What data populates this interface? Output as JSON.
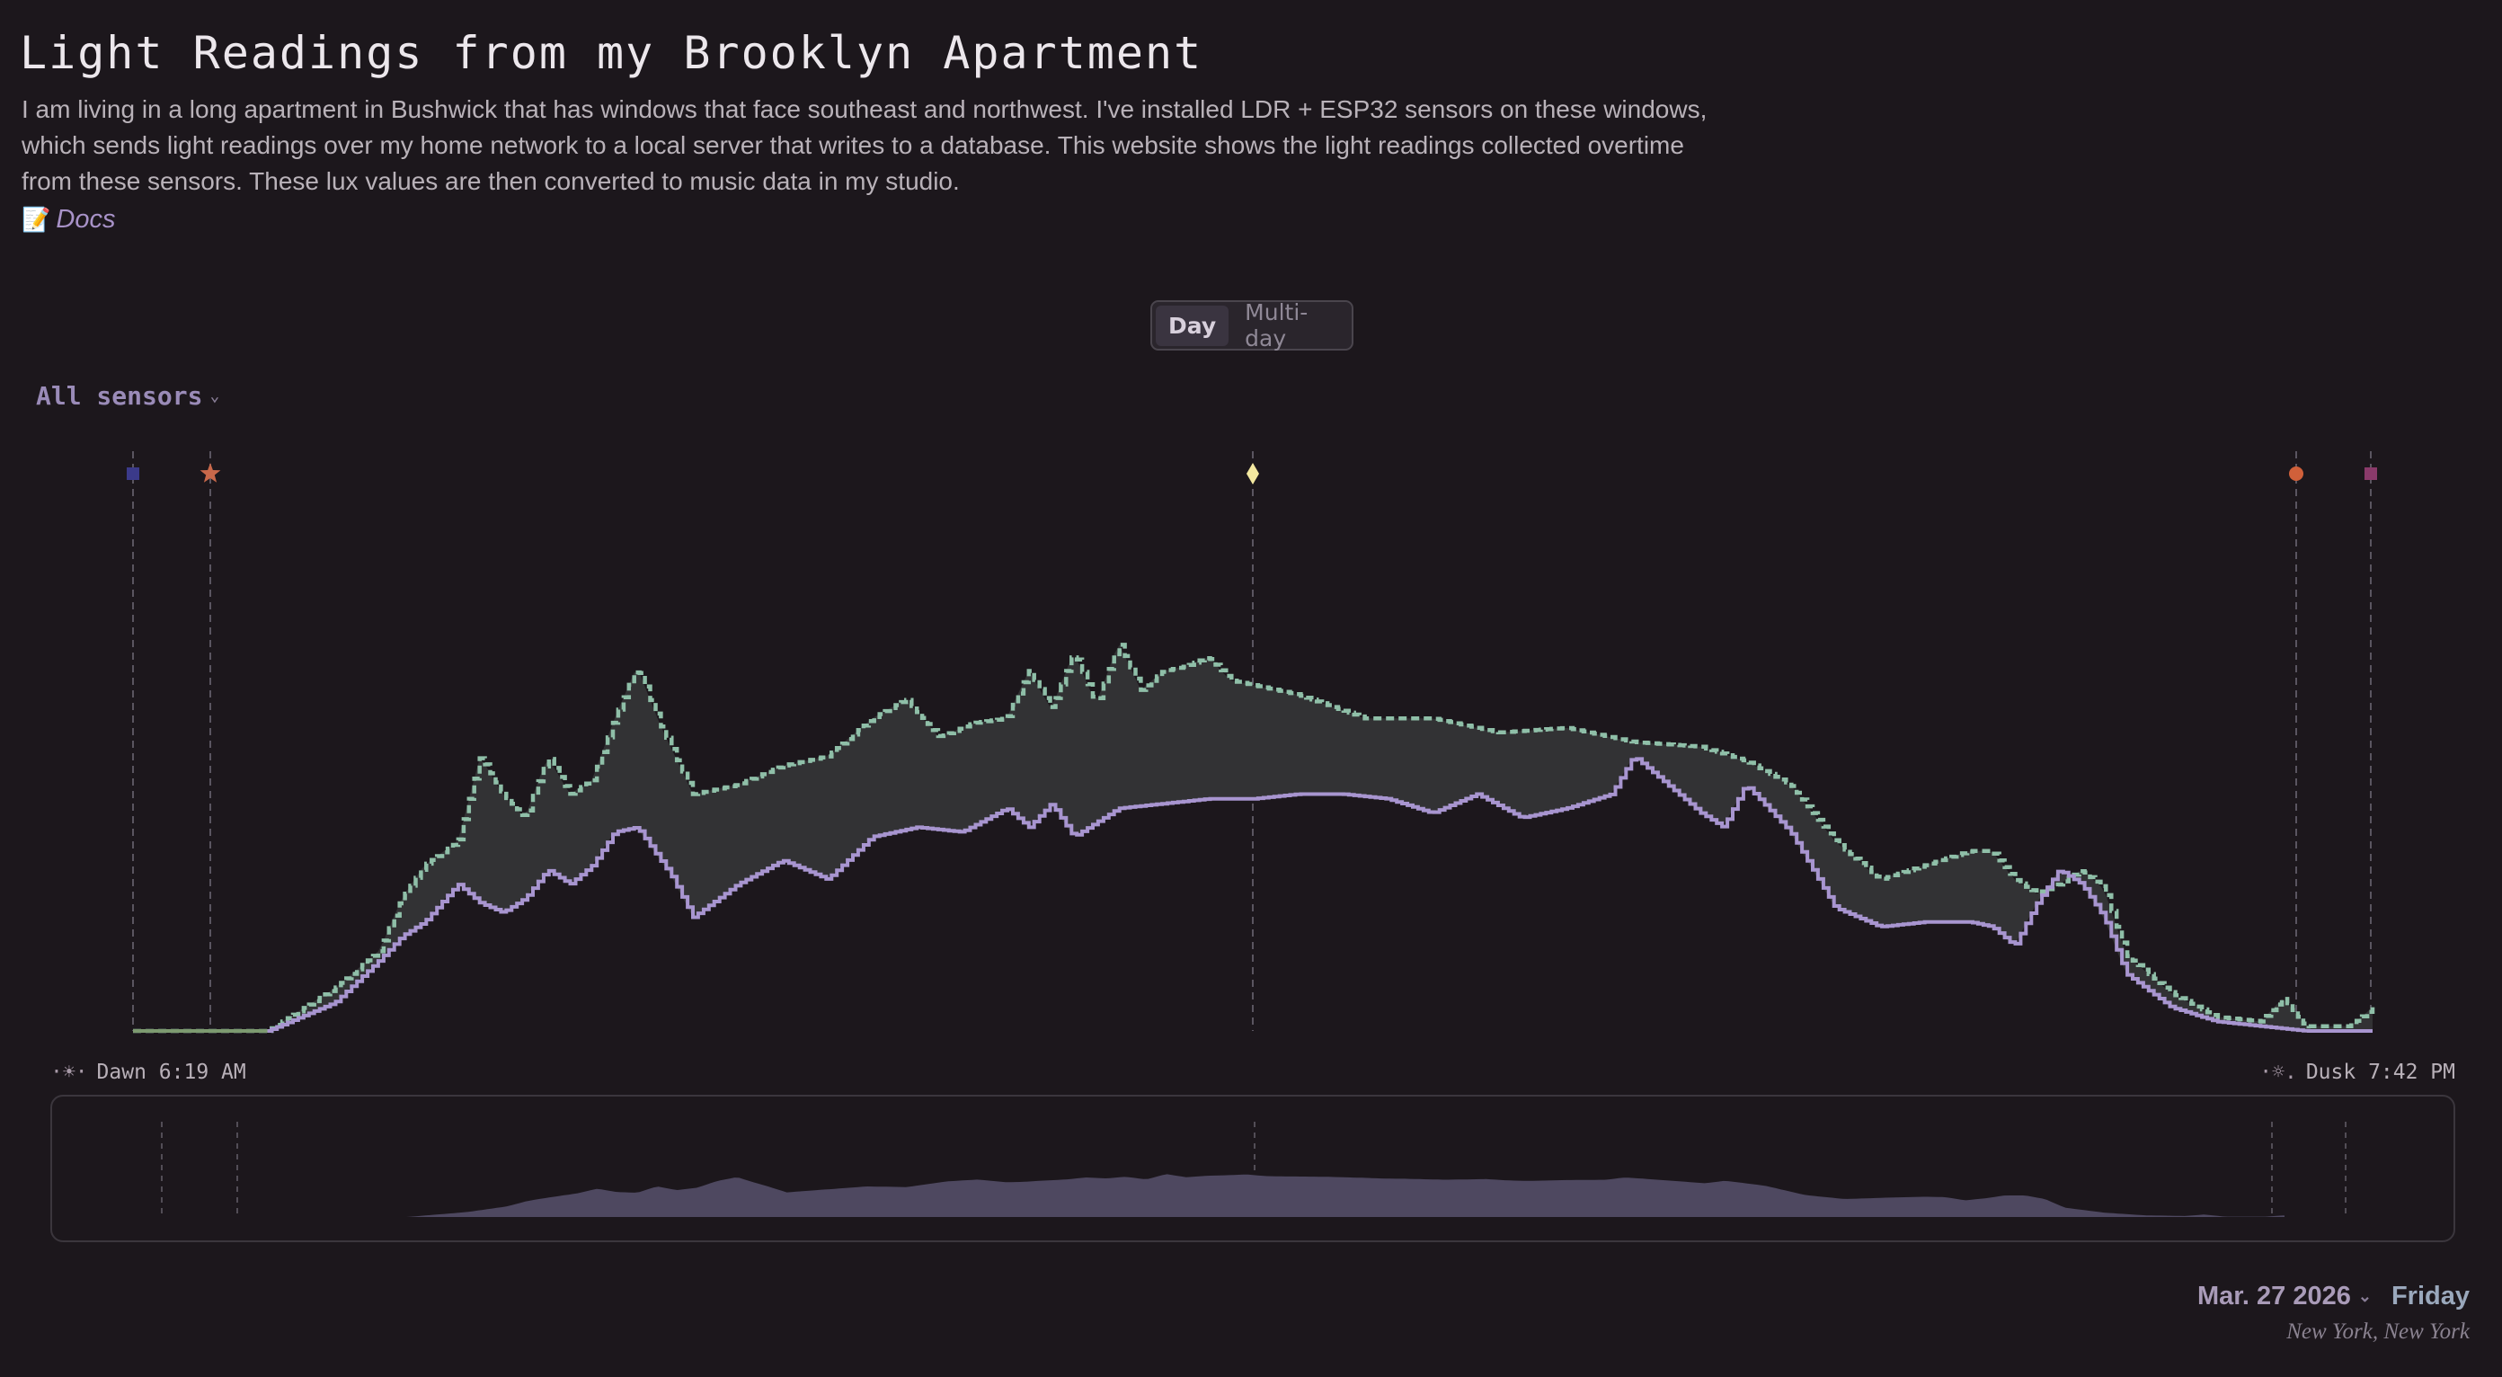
{
  "header": {
    "title": "Light Readings from my Brooklyn Apartment",
    "intro": "I am living in a long apartment in Bushwick that has windows that face southeast and northwest. I've installed LDR + ESP32 sensors on these windows, which sends light readings over my home network to a local server that writes to a database. This website shows the light readings collected overtime from these sensors. These lux values are then converted to music data in my studio.",
    "docs_icon": "memo-icon",
    "docs_label": "Docs"
  },
  "view_toggle": {
    "options": [
      "Day",
      "Multi-day"
    ],
    "selected": "Day"
  },
  "sensor_select": {
    "value": "All sensors"
  },
  "sun": {
    "dawn_label": "Dawn 6:19 AM",
    "dusk_label": "Dusk 7:42 PM"
  },
  "date": {
    "value": "Mar. 27 2026",
    "weekday": "Friday",
    "location": "New York, New York"
  },
  "colors": {
    "background": "#1c171c",
    "sensor_southeast": "#8fbfa8",
    "sensor_northwest": "#a895d0",
    "band_fill": "#323234",
    "overview_fill": "#4e4860",
    "marker_dawn": "#3b3a8a",
    "marker_sunrise": "#c9684a",
    "marker_noon": "#f3e8a0",
    "marker_sunset": "#d0603a",
    "marker_dusk": "#8a3a6a"
  },
  "chart_data": {
    "type": "line",
    "x_unit": "time of day",
    "x_range": [
      "6:19 AM",
      "7:42 PM"
    ],
    "ylabel": "",
    "markers": [
      {
        "kind": "dawn",
        "time": "6:19 AM",
        "shape": "square"
      },
      {
        "kind": "sunrise",
        "shape": "star"
      },
      {
        "kind": "solar-noon",
        "shape": "diamond"
      },
      {
        "kind": "sunset",
        "shape": "circle"
      },
      {
        "kind": "dusk",
        "time": "7:42 PM",
        "shape": "square"
      }
    ],
    "series": [
      {
        "style": "dashed",
        "color": "#8fbfa8",
        "points": [
          [
            0,
            0.0
          ],
          [
            0.06,
            0.0
          ],
          [
            0.07,
            0.03
          ],
          [
            0.09,
            0.09
          ],
          [
            0.11,
            0.17
          ],
          [
            0.12,
            0.28
          ],
          [
            0.13,
            0.35
          ],
          [
            0.145,
            0.4
          ],
          [
            0.155,
            0.58
          ],
          [
            0.165,
            0.5
          ],
          [
            0.175,
            0.45
          ],
          [
            0.185,
            0.58
          ],
          [
            0.195,
            0.5
          ],
          [
            0.205,
            0.53
          ],
          [
            0.215,
            0.66
          ],
          [
            0.225,
            0.77
          ],
          [
            0.235,
            0.65
          ],
          [
            0.25,
            0.5
          ],
          [
            0.27,
            0.52
          ],
          [
            0.29,
            0.56
          ],
          [
            0.31,
            0.58
          ],
          [
            0.33,
            0.66
          ],
          [
            0.345,
            0.7
          ],
          [
            0.36,
            0.62
          ],
          [
            0.375,
            0.65
          ],
          [
            0.39,
            0.66
          ],
          [
            0.4,
            0.76
          ],
          [
            0.41,
            0.68
          ],
          [
            0.42,
            0.8
          ],
          [
            0.43,
            0.69
          ],
          [
            0.44,
            0.82
          ],
          [
            0.45,
            0.72
          ],
          [
            0.46,
            0.76
          ],
          [
            0.47,
            0.77
          ],
          [
            0.48,
            0.79
          ],
          [
            0.49,
            0.74
          ],
          [
            0.5,
            0.73
          ],
          [
            0.52,
            0.71
          ],
          [
            0.55,
            0.66
          ],
          [
            0.58,
            0.66
          ],
          [
            0.61,
            0.63
          ],
          [
            0.64,
            0.64
          ],
          [
            0.67,
            0.61
          ],
          [
            0.7,
            0.6
          ],
          [
            0.72,
            0.57
          ],
          [
            0.74,
            0.52
          ],
          [
            0.76,
            0.4
          ],
          [
            0.78,
            0.32
          ],
          [
            0.8,
            0.35
          ],
          [
            0.82,
            0.38
          ],
          [
            0.83,
            0.38
          ],
          [
            0.84,
            0.32
          ],
          [
            0.85,
            0.29
          ],
          [
            0.86,
            0.31
          ],
          [
            0.87,
            0.34
          ],
          [
            0.88,
            0.3
          ],
          [
            0.89,
            0.16
          ],
          [
            0.91,
            0.08
          ],
          [
            0.93,
            0.03
          ],
          [
            0.95,
            0.02
          ],
          [
            0.96,
            0.07
          ],
          [
            0.97,
            0.01
          ],
          [
            0.99,
            0.01
          ],
          [
            1.0,
            0.05
          ]
        ]
      },
      {
        "style": "solid",
        "color": "#a895d0",
        "points": [
          [
            0,
            0.0
          ],
          [
            0.06,
            0.0
          ],
          [
            0.07,
            0.02
          ],
          [
            0.09,
            0.06
          ],
          [
            0.11,
            0.15
          ],
          [
            0.12,
            0.2
          ],
          [
            0.13,
            0.23
          ],
          [
            0.145,
            0.31
          ],
          [
            0.155,
            0.27
          ],
          [
            0.165,
            0.25
          ],
          [
            0.175,
            0.28
          ],
          [
            0.185,
            0.34
          ],
          [
            0.195,
            0.31
          ],
          [
            0.205,
            0.35
          ],
          [
            0.215,
            0.42
          ],
          [
            0.225,
            0.43
          ],
          [
            0.24,
            0.33
          ],
          [
            0.25,
            0.24
          ],
          [
            0.27,
            0.31
          ],
          [
            0.29,
            0.36
          ],
          [
            0.31,
            0.32
          ],
          [
            0.33,
            0.41
          ],
          [
            0.35,
            0.43
          ],
          [
            0.37,
            0.42
          ],
          [
            0.39,
            0.47
          ],
          [
            0.4,
            0.43
          ],
          [
            0.41,
            0.48
          ],
          [
            0.42,
            0.41
          ],
          [
            0.44,
            0.47
          ],
          [
            0.46,
            0.48
          ],
          [
            0.48,
            0.49
          ],
          [
            0.5,
            0.49
          ],
          [
            0.52,
            0.5
          ],
          [
            0.54,
            0.5
          ],
          [
            0.56,
            0.49
          ],
          [
            0.58,
            0.46
          ],
          [
            0.6,
            0.5
          ],
          [
            0.62,
            0.45
          ],
          [
            0.64,
            0.47
          ],
          [
            0.66,
            0.5
          ],
          [
            0.67,
            0.58
          ],
          [
            0.68,
            0.54
          ],
          [
            0.7,
            0.46
          ],
          [
            0.71,
            0.43
          ],
          [
            0.72,
            0.52
          ],
          [
            0.74,
            0.42
          ],
          [
            0.76,
            0.26
          ],
          [
            0.78,
            0.22
          ],
          [
            0.8,
            0.23
          ],
          [
            0.82,
            0.23
          ],
          [
            0.83,
            0.22
          ],
          [
            0.84,
            0.18
          ],
          [
            0.85,
            0.27
          ],
          [
            0.86,
            0.34
          ],
          [
            0.87,
            0.31
          ],
          [
            0.88,
            0.24
          ],
          [
            0.89,
            0.12
          ],
          [
            0.91,
            0.05
          ],
          [
            0.93,
            0.02
          ],
          [
            0.95,
            0.01
          ],
          [
            0.97,
            0.0
          ],
          [
            1.0,
            0.0
          ]
        ]
      }
    ]
  }
}
